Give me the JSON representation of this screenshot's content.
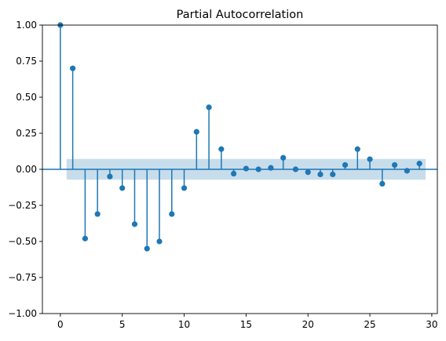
{
  "chart_data": {
    "type": "stem",
    "title": "Partial Autocorrelation",
    "xlabel": "",
    "ylabel": "",
    "xlim": [
      -1.45,
      30.45
    ],
    "ylim": [
      -1.0,
      1.0
    ],
    "xticks": [
      0,
      5,
      10,
      15,
      20,
      25,
      30
    ],
    "yticks": [
      -1.0,
      -0.75,
      -0.5,
      -0.25,
      0.0,
      0.25,
      0.5,
      0.75,
      1.0
    ],
    "xtick_labels": [
      "0",
      "5",
      "10",
      "15",
      "20",
      "25",
      "30"
    ],
    "ytick_labels": [
      "−1.00",
      "−0.75",
      "−0.50",
      "−0.25",
      "0.00",
      "0.25",
      "0.50",
      "0.75",
      "1.00"
    ],
    "lags": [
      0,
      1,
      2,
      3,
      4,
      5,
      6,
      7,
      8,
      9,
      10,
      11,
      12,
      13,
      14,
      15,
      16,
      17,
      18,
      19,
      20,
      21,
      22,
      23,
      24,
      25,
      26,
      27,
      28,
      29
    ],
    "values": [
      1.0,
      0.7,
      -0.48,
      -0.31,
      -0.05,
      -0.13,
      -0.38,
      -0.55,
      -0.5,
      -0.31,
      -0.13,
      0.26,
      0.43,
      0.14,
      -0.03,
      0.005,
      0.0,
      0.01,
      0.08,
      0.0,
      -0.02,
      -0.035,
      -0.035,
      0.03,
      0.14,
      0.07,
      -0.1,
      0.03,
      -0.01,
      0.04
    ],
    "confidence_band": {
      "x": [
        0.5,
        29.5
      ],
      "y": [
        -0.072,
        0.072
      ]
    },
    "grid": false,
    "colors": {
      "stem": "#1f77b4",
      "band": "#1f77b4",
      "axes": "#000000"
    }
  }
}
